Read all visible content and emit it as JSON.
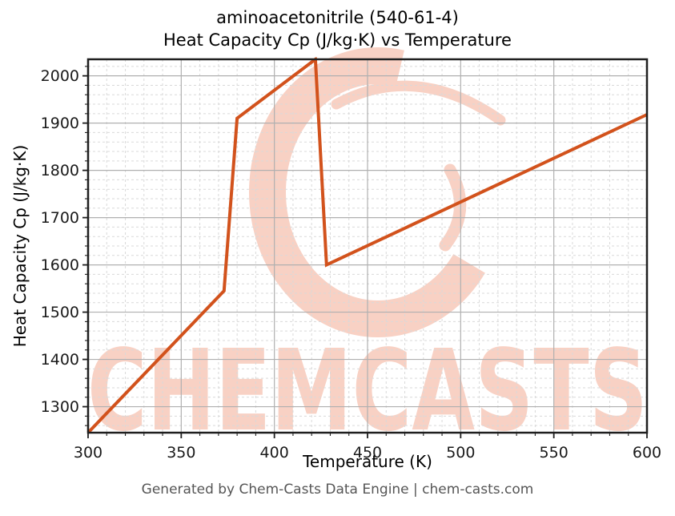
{
  "figure": {
    "title_line1": "aminoacetonitrile (540-61-4)",
    "title_line2": "Heat Capacity Cp (J/kg·K) vs Temperature",
    "footer": "Generated by Chem-Casts Data Engine | chem-casts.com"
  },
  "watermark": {
    "text": "CHEMCASTS",
    "logo": "c-swoosh-logo",
    "color": "#f8d1c4"
  },
  "colors": {
    "line": "#d2521c",
    "grid_major": "#b0b0b0",
    "grid_minor": "#d9d9d9",
    "spine": "#1f1f1f",
    "tick_label": "#1a1a1a",
    "footer_text": "#555555"
  },
  "chart_data": {
    "type": "line",
    "title": "aminoacetonitrile (540-61-4)",
    "subtitle": "Heat Capacity Cp (J/kg·K) vs Temperature",
    "xlabel": "Temperature (K)",
    "ylabel": "Heat Capacity Cp (J/kg·K)",
    "xlim": [
      300,
      600
    ],
    "ylim": [
      1245,
      2035
    ],
    "x_ticks": [
      300,
      350,
      400,
      450,
      500,
      550,
      600
    ],
    "y_ticks": [
      1300,
      1400,
      1500,
      1600,
      1700,
      1800,
      1900,
      2000
    ],
    "x_minor_step": 10,
    "y_minor_step": 20,
    "grid": "major solid, minor dashed",
    "legend_position": "none",
    "series": [
      {
        "name": "Heat Capacity Cp",
        "color": "#d2521c",
        "points": [
          [
            300,
            1245
          ],
          [
            373,
            1545
          ],
          [
            380,
            1910
          ],
          [
            422,
            2035
          ],
          [
            428,
            1600
          ],
          [
            600,
            1918
          ]
        ]
      }
    ]
  }
}
